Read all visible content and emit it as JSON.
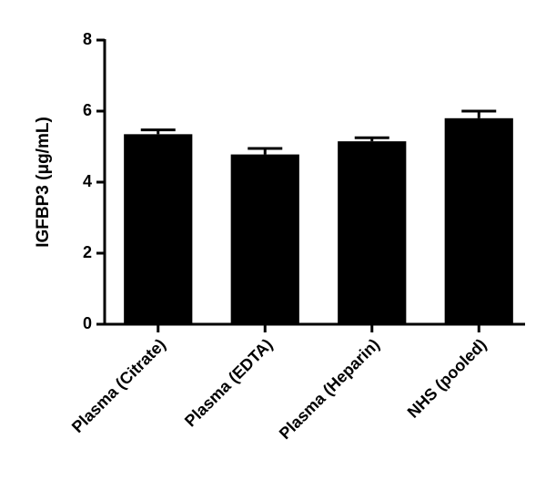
{
  "chart_data": {
    "type": "bar",
    "y_label": "IGFBP3 (μg/mL)",
    "categories": [
      "Plasma (Citrate)",
      "Plasma (EDTA)",
      "Plasma (Heparin)",
      "NHS (pooled)"
    ],
    "values": [
      5.35,
      4.78,
      5.15,
      5.8
    ],
    "errors": [
      0.12,
      0.17,
      0.1,
      0.2
    ],
    "color": "#000000",
    "ylim": [
      0,
      8
    ],
    "yticks": [
      0,
      2,
      4,
      6,
      8
    ]
  }
}
